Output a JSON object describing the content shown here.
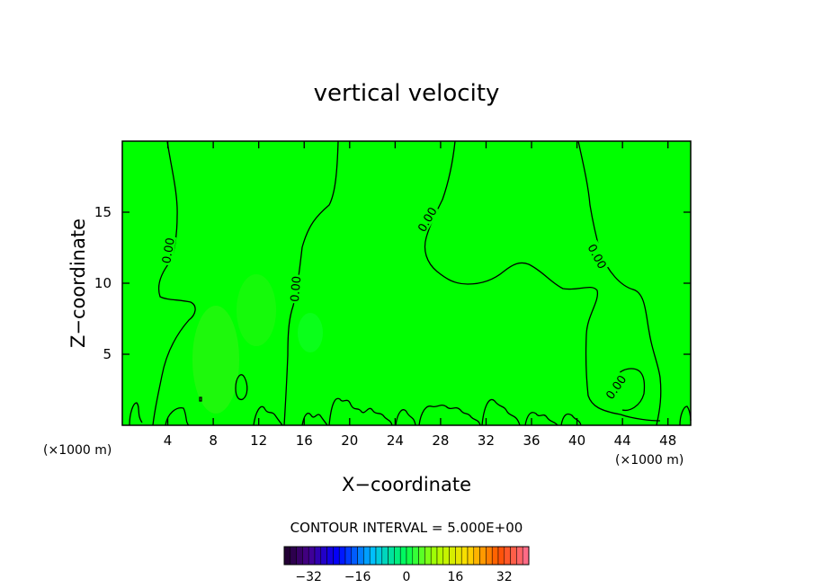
{
  "chart_data": {
    "type": "heatmap",
    "title": "vertical velocity",
    "xlabel": "X−coordinate",
    "ylabel": "Z−coordinate",
    "x_unit_left": "(×1000 m)",
    "x_unit_right": "(×1000 m)",
    "xlim": [
      0,
      50
    ],
    "ylim": [
      0,
      20
    ],
    "x_ticks": [
      "4",
      "8",
      "12",
      "16",
      "20",
      "24",
      "28",
      "32",
      "36",
      "40",
      "44",
      "48"
    ],
    "y_ticks": [
      "5",
      "10",
      "15"
    ],
    "field_color": "#00ff00",
    "contour_level_label": "0.00",
    "contour_interval_text": "CONTOUR INTERVAL = 5.000E+00",
    "colorbar": {
      "ticks": [
        "−32",
        "−16",
        "0",
        "16",
        "32"
      ],
      "tick_values": [
        -32,
        -16,
        0,
        16,
        32
      ],
      "range": [
        -40,
        40
      ]
    },
    "contour_label_positions": [
      {
        "x": 4.0,
        "z": 12.3,
        "angle": -80
      },
      {
        "x": 15.2,
        "z": 9.6,
        "angle": -85
      },
      {
        "x": 26.8,
        "z": 14.5,
        "angle": -60
      },
      {
        "x": 41.8,
        "z": 11.9,
        "angle": 62
      },
      {
        "x": 43.4,
        "z": 2.7,
        "angle": -55
      }
    ]
  }
}
